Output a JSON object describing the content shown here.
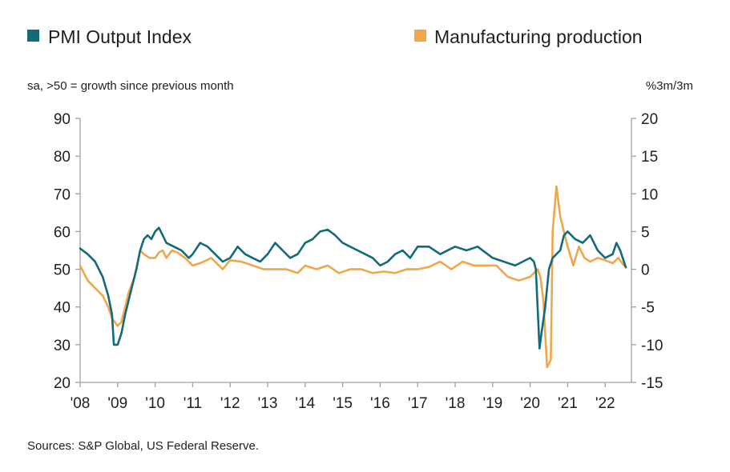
{
  "colors": {
    "pmi": "#136a79",
    "production": "#f0a64a",
    "axis": "#a0a0a0",
    "text": "#1f1f1f"
  },
  "chart_data": {
    "type": "line",
    "legend": {
      "pmi": "PMI Output Index",
      "production": "Manufacturing production"
    },
    "left_axis_label": "sa, >50 = growth since previous month",
    "right_axis_label": "%3m/3m",
    "source": "Sources: S&P Global, US Federal Reserve.",
    "y_left_range": [
      20,
      90
    ],
    "y_left_ticks": [
      "90",
      "80",
      "70",
      "60",
      "50",
      "40",
      "30",
      "20"
    ],
    "y_right_range": [
      -15,
      20
    ],
    "y_right_ticks": [
      "20",
      "15",
      "10",
      "5",
      "0",
      "-5",
      "-10",
      "-15"
    ],
    "x_range": [
      2008.0,
      2022.7
    ],
    "x_ticks": [
      "'08",
      "'09",
      "'10",
      "'11",
      "'12",
      "'13",
      "'14",
      "'15",
      "'16",
      "'17",
      "'18",
      "'19",
      "'20",
      "'21",
      "'22"
    ],
    "series": [
      {
        "name": "PMI Output Index",
        "axis": "left",
        "x": [
          2008.0,
          2008.2,
          2008.4,
          2008.6,
          2008.75,
          2008.85,
          2008.9,
          2009.0,
          2009.1,
          2009.2,
          2009.3,
          2009.4,
          2009.5,
          2009.6,
          2009.7,
          2009.8,
          2009.9,
          2010.0,
          2010.1,
          2010.2,
          2010.3,
          2010.4,
          2010.5,
          2010.7,
          2010.9,
          2011.0,
          2011.2,
          2011.4,
          2011.6,
          2011.8,
          2012.0,
          2012.2,
          2012.4,
          2012.6,
          2012.8,
          2013.0,
          2013.2,
          2013.4,
          2013.6,
          2013.8,
          2014.0,
          2014.2,
          2014.4,
          2014.6,
          2014.8,
          2015.0,
          2015.2,
          2015.4,
          2015.6,
          2015.8,
          2016.0,
          2016.2,
          2016.4,
          2016.6,
          2016.8,
          2017.0,
          2017.3,
          2017.6,
          2018.0,
          2018.3,
          2018.6,
          2019.0,
          2019.3,
          2019.6,
          2020.0,
          2020.1,
          2020.15,
          2020.25,
          2020.3,
          2020.4,
          2020.5,
          2020.6,
          2020.7,
          2020.8,
          2020.9,
          2021.0,
          2021.2,
          2021.4,
          2021.6,
          2021.8,
          2022.0,
          2022.2,
          2022.3,
          2022.4,
          2022.55
        ],
        "values": [
          55.5,
          54,
          52,
          48,
          43,
          38,
          30,
          30,
          33,
          38,
          42,
          46,
          50,
          55,
          58,
          59,
          58,
          60,
          61,
          59,
          57,
          56.5,
          56,
          55,
          53,
          54,
          57,
          56,
          54,
          52,
          53,
          56,
          54,
          53,
          52,
          54,
          57,
          55,
          53,
          54,
          57,
          58,
          60,
          60.5,
          59,
          57,
          56,
          55,
          54,
          53,
          51,
          52,
          54,
          55,
          53,
          56,
          56,
          54,
          56,
          55,
          56,
          53,
          52,
          51,
          53,
          52,
          50,
          29,
          33,
          40,
          50,
          53,
          54,
          55,
          59,
          60,
          58,
          57,
          59,
          55,
          53,
          54,
          57,
          55,
          50.5
        ]
      },
      {
        "name": "Manufacturing production",
        "axis": "right",
        "x": [
          2008.0,
          2008.2,
          2008.4,
          2008.6,
          2008.75,
          2008.85,
          2009.0,
          2009.1,
          2009.2,
          2009.3,
          2009.45,
          2009.6,
          2009.7,
          2009.85,
          2010.0,
          2010.1,
          2010.2,
          2010.3,
          2010.45,
          2010.6,
          2010.8,
          2011.0,
          2011.2,
          2011.5,
          2011.8,
          2012.0,
          2012.3,
          2012.6,
          2012.9,
          2013.2,
          2013.5,
          2013.8,
          2014.0,
          2014.3,
          2014.6,
          2014.9,
          2015.2,
          2015.5,
          2015.8,
          2016.1,
          2016.4,
          2016.7,
          2017.0,
          2017.3,
          2017.6,
          2017.9,
          2018.2,
          2018.5,
          2018.8,
          2019.1,
          2019.4,
          2019.7,
          2020.0,
          2020.1,
          2020.2,
          2020.27,
          2020.35,
          2020.45,
          2020.55,
          2020.6,
          2020.7,
          2020.8,
          2020.9,
          2021.0,
          2021.15,
          2021.3,
          2021.45,
          2021.6,
          2021.8,
          2022.0,
          2022.2,
          2022.35,
          2022.5
        ],
        "values": [
          0.5,
          -1.5,
          -2.5,
          -3.5,
          -5,
          -6.5,
          -7.5,
          -7,
          -5,
          -3,
          -1,
          2.5,
          2,
          1.5,
          1.5,
          2.2,
          2.5,
          1.5,
          2.5,
          2.2,
          1.5,
          0.5,
          0.8,
          1.5,
          0,
          1.2,
          1,
          0.5,
          0,
          0,
          0,
          -0.5,
          0.5,
          0,
          0.5,
          -0.5,
          0,
          0,
          -0.5,
          -0.3,
          -0.5,
          0,
          0,
          0.3,
          1,
          0,
          1,
          0.5,
          0.5,
          0.5,
          -1,
          -1.5,
          -1,
          -0.5,
          0,
          -1,
          -4,
          -13,
          -12,
          5,
          11,
          7,
          5,
          3,
          0.5,
          3,
          1.5,
          1,
          1.5,
          1.2,
          0.8,
          1.5,
          0.5
        ]
      }
    ]
  }
}
